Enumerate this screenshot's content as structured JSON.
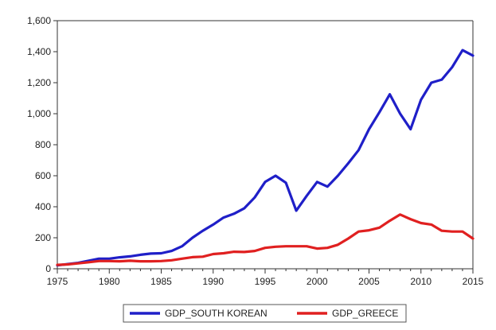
{
  "chart_data": {
    "type": "line",
    "title": "",
    "xlabel": "",
    "ylabel": "",
    "xlim": [
      1975,
      2015
    ],
    "ylim": [
      0,
      1600
    ],
    "x_ticks": [
      1975,
      1980,
      1985,
      1990,
      1995,
      2000,
      2005,
      2010,
      2015
    ],
    "y_ticks": [
      0,
      200,
      400,
      600,
      800,
      1000,
      1200,
      1400,
      1600
    ],
    "y_tick_labels": [
      "0",
      "200",
      "400",
      "600",
      "800",
      "1,000",
      "1,200",
      "1,400",
      "1,600"
    ],
    "grid": false,
    "legend_position": "bottom",
    "x": [
      1975,
      1976,
      1977,
      1978,
      1979,
      1980,
      1981,
      1982,
      1983,
      1984,
      1985,
      1986,
      1987,
      1988,
      1989,
      1990,
      1991,
      1992,
      1993,
      1994,
      1995,
      1996,
      1997,
      1998,
      1999,
      2000,
      2001,
      2002,
      2003,
      2004,
      2005,
      2006,
      2007,
      2008,
      2009,
      2010,
      2011,
      2012,
      2013,
      2014,
      2015
    ],
    "series": [
      {
        "name": "GDP_SOUTH KOREAN",
        "color": "#1f1fc8",
        "values": [
          22,
          30,
          38,
          52,
          65,
          65,
          74,
          80,
          90,
          98,
          100,
          115,
          145,
          200,
          245,
          285,
          330,
          355,
          390,
          460,
          560,
          600,
          555,
          375,
          470,
          560,
          530,
          600,
          680,
          765,
          900,
          1010,
          1125,
          1000,
          900,
          1090,
          1200,
          1220,
          1300,
          1410,
          1375
        ]
      },
      {
        "name": "GDP_GREECE",
        "color": "#e02020",
        "values": [
          25,
          28,
          35,
          42,
          50,
          50,
          48,
          52,
          48,
          48,
          50,
          55,
          65,
          75,
          78,
          95,
          100,
          110,
          108,
          115,
          135,
          142,
          145,
          145,
          145,
          130,
          135,
          155,
          195,
          240,
          248,
          265,
          310,
          350,
          320,
          295,
          285,
          245,
          240,
          240,
          195
        ]
      }
    ]
  }
}
